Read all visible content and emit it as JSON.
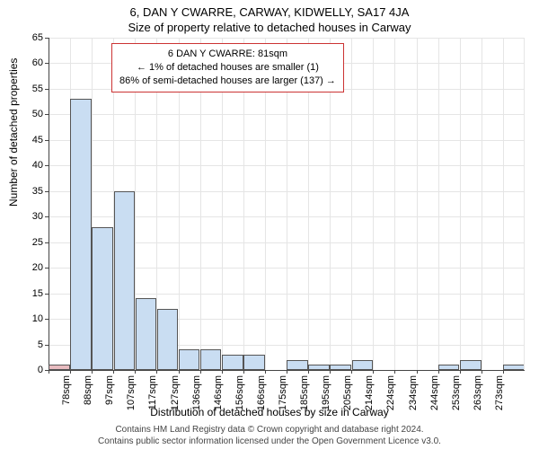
{
  "title_line1": "6, DAN Y CWARRE, CARWAY, KIDWELLY, SA17 4JA",
  "title_line2": "Size of property relative to detached houses in Carway",
  "y_axis_label": "Number of detached properties",
  "x_axis_label": "Distribution of detached houses by size in Carway",
  "chart": {
    "type": "histogram",
    "background_color": "#ffffff",
    "grid_color": "#e5e5e5",
    "axis_color": "#444444",
    "bar_color": "#c9ddf2",
    "bar_border_color": "#555555",
    "highlight_color": "#e8bcc0",
    "ylim": [
      0,
      65
    ],
    "yticks": [
      0,
      5,
      10,
      15,
      20,
      25,
      30,
      35,
      40,
      45,
      50,
      55,
      60,
      65
    ],
    "x_categories": [
      "78sqm",
      "88sqm",
      "97sqm",
      "107sqm",
      "117sqm",
      "127sqm",
      "136sqm",
      "146sqm",
      "156sqm",
      "166sqm",
      "175sqm",
      "185sqm",
      "195sqm",
      "205sqm",
      "214sqm",
      "224sqm",
      "234sqm",
      "244sqm",
      "253sqm",
      "263sqm",
      "273sqm"
    ],
    "values": [
      1,
      53,
      28,
      35,
      14,
      12,
      4,
      4,
      3,
      3,
      0,
      2,
      1,
      1,
      2,
      0,
      0,
      0,
      1,
      2,
      0,
      1
    ],
    "highlight_index": 0,
    "title_fontsize": 13,
    "label_fontsize": 12,
    "tick_fontsize": 11
  },
  "tooltip": {
    "border_color": "#cc3333",
    "line1": "6 DAN Y CWARRE: 81sqm",
    "line2": "← 1% of detached houses are smaller (1)",
    "line3": "86% of semi-detached houses are larger (137) →"
  },
  "footer_line1": "Contains HM Land Registry data © Crown copyright and database right 2024.",
  "footer_line2": "Contains public sector information licensed under the Open Government Licence v3.0."
}
